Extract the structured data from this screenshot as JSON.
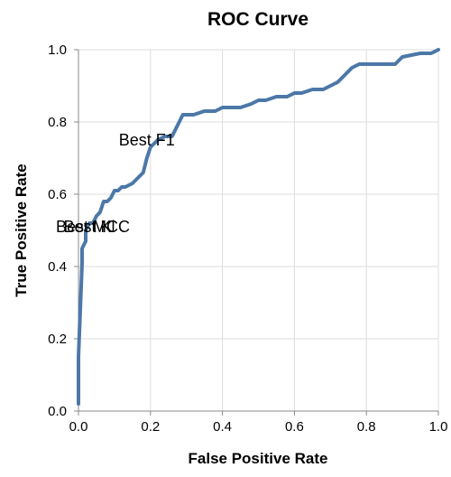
{
  "chart_data": {
    "type": "line",
    "title": "ROC Curve",
    "xlabel": "False Positive Rate",
    "ylabel": "True Positive Rate",
    "xlim": [
      0,
      1
    ],
    "ylim": [
      0,
      1
    ],
    "xticks": [
      "0.0",
      "0.2",
      "0.4",
      "0.6",
      "0.8",
      "1.0"
    ],
    "yticks": [
      "0.0",
      "0.2",
      "0.4",
      "0.6",
      "0.8",
      "1.0"
    ],
    "grid": true,
    "series": [
      {
        "color": "#4c78a8",
        "x": [
          0.0,
          0.0,
          0.01,
          0.01,
          0.02,
          0.02,
          0.03,
          0.04,
          0.05,
          0.06,
          0.07,
          0.08,
          0.09,
          0.1,
          0.11,
          0.12,
          0.13,
          0.15,
          0.16,
          0.18,
          0.19,
          0.2,
          0.21,
          0.22,
          0.24,
          0.26,
          0.28,
          0.29,
          0.3,
          0.32,
          0.35,
          0.38,
          0.4,
          0.45,
          0.48,
          0.5,
          0.52,
          0.55,
          0.58,
          0.6,
          0.62,
          0.65,
          0.68,
          0.7,
          0.72,
          0.74,
          0.76,
          0.78,
          0.8,
          0.85,
          0.88,
          0.9,
          0.95,
          0.98,
          1.0
        ],
        "y": [
          0.02,
          0.15,
          0.41,
          0.45,
          0.47,
          0.5,
          0.52,
          0.52,
          0.54,
          0.55,
          0.58,
          0.58,
          0.59,
          0.61,
          0.61,
          0.62,
          0.62,
          0.63,
          0.64,
          0.66,
          0.7,
          0.73,
          0.74,
          0.75,
          0.76,
          0.76,
          0.8,
          0.82,
          0.82,
          0.82,
          0.83,
          0.83,
          0.84,
          0.84,
          0.85,
          0.86,
          0.86,
          0.87,
          0.87,
          0.88,
          0.88,
          0.89,
          0.89,
          0.9,
          0.91,
          0.93,
          0.95,
          0.96,
          0.96,
          0.96,
          0.96,
          0.98,
          0.99,
          0.99,
          1.0
        ]
      }
    ],
    "annotations": [
      {
        "text": "Best F1",
        "x": 0.19,
        "y": 0.75
      },
      {
        "text": "Best MCC",
        "x": 0.04,
        "y": 0.51
      },
      {
        "text": "Best Kl",
        "x": 0.03,
        "y": 0.51
      }
    ]
  }
}
